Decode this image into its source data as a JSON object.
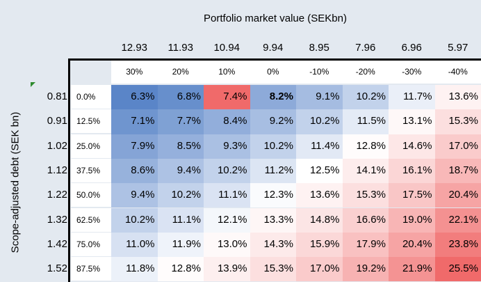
{
  "header": {
    "title": "Portfolio market value (SEKbn)",
    "market_values": [
      "12.93",
      "11.93",
      "10.94",
      "9.94",
      "8.95",
      "7.96",
      "6.96",
      "5.97"
    ],
    "changes": [
      "30%",
      "20%",
      "10%",
      "0%",
      "-10%",
      "-20%",
      "-30%",
      "-40%"
    ]
  },
  "side": {
    "title": "Scope-adjusted debt (SEK bn)",
    "debt": [
      "0.81",
      "0.91",
      "1.02",
      "1.12",
      "1.22",
      "1.32",
      "1.42",
      "1.52"
    ],
    "ltv": [
      "0.0%",
      "12.5%",
      "25.0%",
      "37.5%",
      "50.0%",
      "62.5%",
      "75.0%",
      "87.5%"
    ]
  },
  "table": {
    "rows": [
      [
        "6.3%",
        "6.8%",
        "7.4%",
        "8.2%",
        "9.1%",
        "10.2%",
        "11.7%",
        "13.6%"
      ],
      [
        "7.1%",
        "7.7%",
        "8.4%",
        "9.2%",
        "10.2%",
        "11.5%",
        "13.1%",
        "15.3%"
      ],
      [
        "7.9%",
        "8.5%",
        "9.3%",
        "10.2%",
        "11.4%",
        "12.8%",
        "14.6%",
        "17.0%"
      ],
      [
        "8.6%",
        "9.4%",
        "10.2%",
        "11.2%",
        "12.5%",
        "14.1%",
        "16.1%",
        "18.7%"
      ],
      [
        "9.4%",
        "10.2%",
        "11.1%",
        "12.3%",
        "13.6%",
        "15.3%",
        "17.5%",
        "20.4%"
      ],
      [
        "10.2%",
        "11.1%",
        "12.1%",
        "13.3%",
        "14.8%",
        "16.6%",
        "19.0%",
        "22.1%"
      ],
      [
        "11.0%",
        "11.9%",
        "13.0%",
        "14.3%",
        "15.9%",
        "17.9%",
        "20.4%",
        "23.8%"
      ],
      [
        "11.8%",
        "12.8%",
        "13.9%",
        "15.3%",
        "17.0%",
        "19.2%",
        "21.9%",
        "25.5%"
      ]
    ]
  },
  "highlight_cell": [
    0,
    2
  ],
  "bold_cell": [
    0,
    3
  ]
}
